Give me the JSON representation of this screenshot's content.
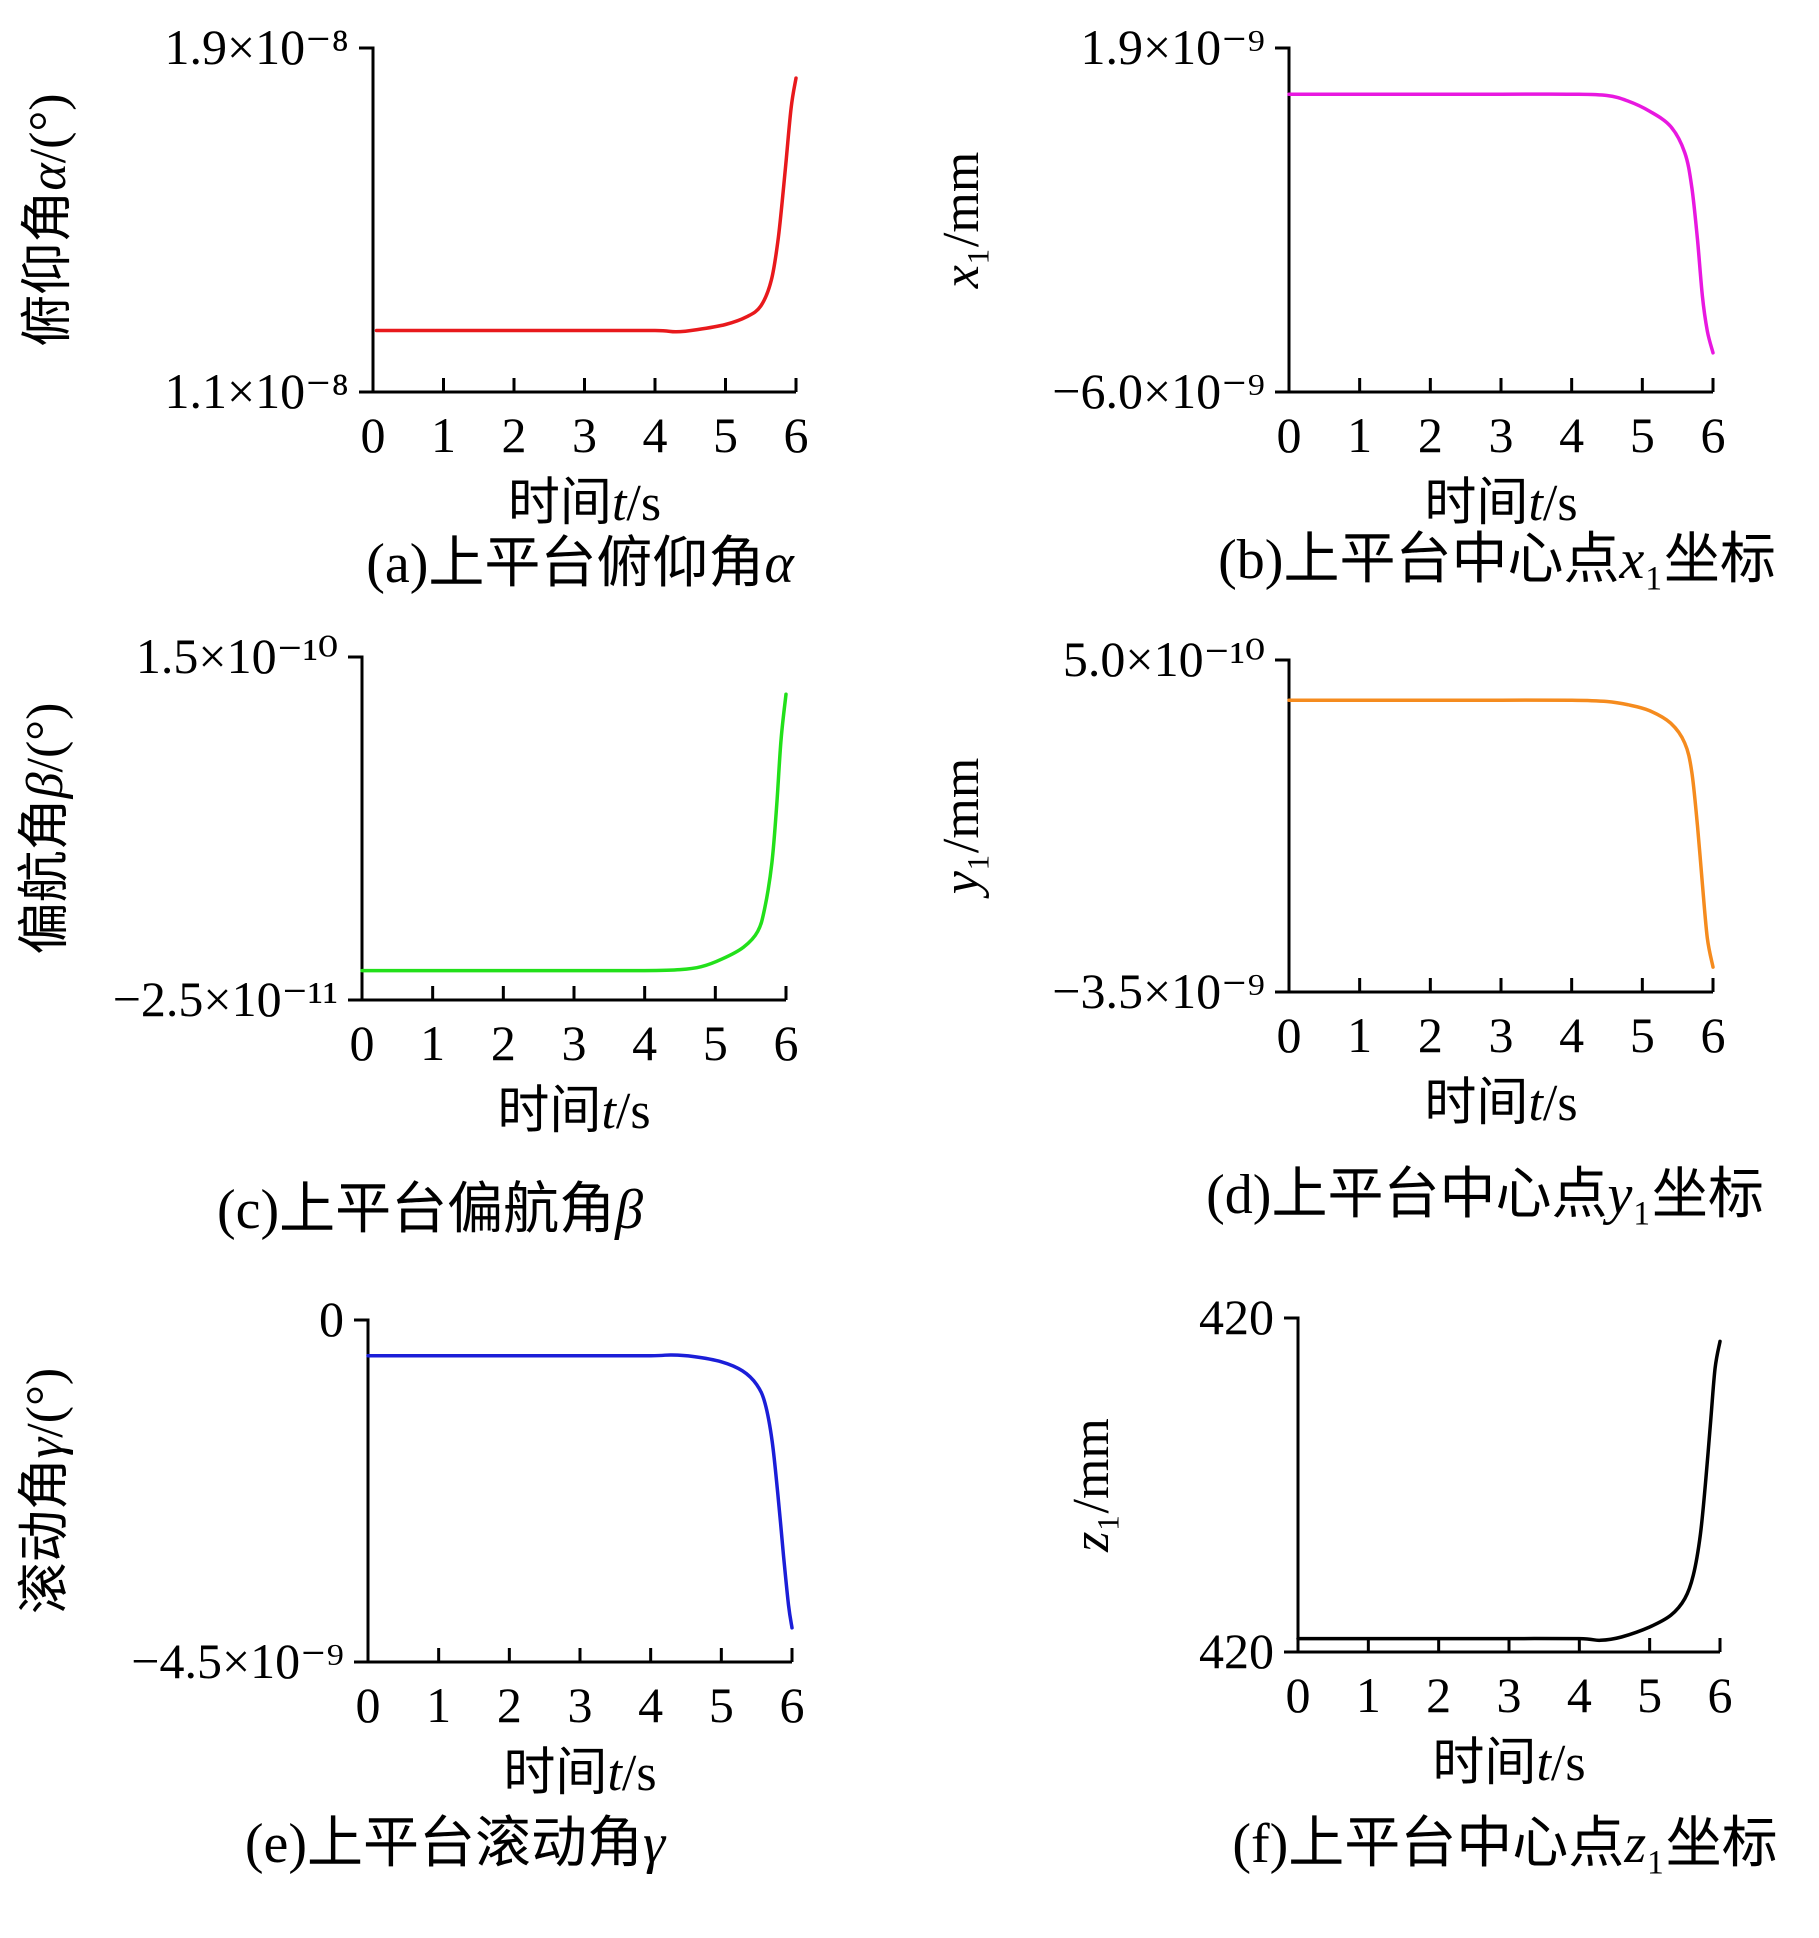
{
  "x_axis_label": "时间t/s",
  "chart_data": [
    {
      "id": "a",
      "type": "line",
      "caption": "(a)上平台俯仰角α",
      "ylabel": "俯仰角α/(°)",
      "y_tick_labels": {
        "top": "1.9×10⁻⁸",
        "bottom": "1.1×10⁻⁸"
      },
      "xlim": [
        0,
        6
      ],
      "ylim": [
        1.1e-08,
        1.9e-08
      ],
      "x_ticks": [
        0,
        1,
        2,
        3,
        4,
        5,
        6
      ],
      "color": "#e8191c",
      "series": [
        {
          "x": [
            0.05,
            1,
            2,
            3,
            4,
            4.3,
            4.6,
            5,
            5.3,
            5.5,
            5.65,
            5.75,
            5.85,
            5.93,
            6.0
          ],
          "y": [
            1.243e-08,
            1.243e-08,
            1.243e-08,
            1.243e-08,
            1.243e-08,
            1.24e-08,
            1.245e-08,
            1.257e-08,
            1.275e-08,
            1.3e-08,
            1.36e-08,
            1.46e-08,
            1.62e-08,
            1.76e-08,
            1.83e-08
          ]
        }
      ]
    },
    {
      "id": "b",
      "type": "line",
      "caption": "(b)上平台中心点x₁坐标",
      "ylabel": "x₁/mm",
      "y_tick_labels": {
        "top": "1.9×10⁻⁹",
        "bottom": "−6.0×10⁻⁹"
      },
      "xlim": [
        0,
        6
      ],
      "ylim": [
        -6e-09,
        1.9e-09
      ],
      "x_ticks": [
        0,
        1,
        2,
        3,
        4,
        5,
        6
      ],
      "color": "#e818e0",
      "series": [
        {
          "x": [
            0,
            1,
            2,
            3,
            4,
            4.5,
            4.8,
            5.1,
            5.4,
            5.6,
            5.7,
            5.78,
            5.85,
            5.92,
            6.0
          ],
          "y": [
            8.4e-10,
            8.4e-10,
            8.4e-10,
            8.4e-10,
            8.4e-10,
            8.1e-10,
            6.8e-10,
            4.5e-10,
            1e-10,
            -5e-10,
            -1.3e-09,
            -2.5e-09,
            -3.8e-09,
            -4.6e-09,
            -5.1e-09
          ]
        }
      ]
    },
    {
      "id": "c",
      "type": "line",
      "caption": "(c)上平台偏航角β",
      "ylabel": "偏航角β/(°)",
      "y_tick_labels": {
        "top": "1.5×10⁻¹⁰",
        "bottom": "−2.5×10⁻¹¹"
      },
      "xlim": [
        0,
        6
      ],
      "ylim": [
        -2.5e-11,
        1.5e-10
      ],
      "x_ticks": [
        0,
        1,
        2,
        3,
        4,
        5,
        6
      ],
      "color": "#22e01a",
      "series": [
        {
          "x": [
            0,
            1,
            2,
            3,
            4,
            4.5,
            4.8,
            5.1,
            5.4,
            5.6,
            5.7,
            5.8,
            5.87,
            5.93,
            6.0
          ],
          "y": [
            -1e-11,
            -1e-11,
            -1e-11,
            -1e-11,
            -1e-11,
            -9.5e-12,
            -8e-12,
            -4e-12,
            2e-12,
            1e-11,
            2.2e-11,
            4.5e-11,
            7.5e-11,
            1.08e-10,
            1.31e-10
          ]
        }
      ]
    },
    {
      "id": "d",
      "type": "line",
      "caption": "(d)上平台中心点y₁坐标",
      "ylabel": "y₁/mm",
      "y_tick_labels": {
        "top": "5.0×10⁻¹⁰",
        "bottom": "−3.5×10⁻⁹"
      },
      "xlim": [
        0,
        6
      ],
      "ylim": [
        -3.5e-09,
        5e-10
      ],
      "x_ticks": [
        0,
        1,
        2,
        3,
        4,
        5,
        6
      ],
      "color": "#f58b1e",
      "series": [
        {
          "x": [
            0,
            1,
            2,
            3,
            4,
            4.5,
            4.8,
            5.1,
            5.4,
            5.6,
            5.7,
            5.78,
            5.85,
            5.92,
            6.0
          ],
          "y": [
            1.6e-11,
            1.6e-11,
            1.6e-11,
            1.6e-11,
            1.6e-11,
            0.0,
            -4e-11,
            -1.1e-10,
            -2.6e-10,
            -5e-10,
            -8.5e-10,
            -1.5e-09,
            -2.2e-09,
            -2.85e-09,
            -3.2e-09
          ]
        }
      ]
    },
    {
      "id": "e",
      "type": "line",
      "caption": "(e)上平台滚动角γ",
      "ylabel": "滚动角γ/(°)",
      "y_tick_labels": {
        "top": "0",
        "bottom": "−4.5×10⁻⁹"
      },
      "xlim": [
        0,
        6
      ],
      "ylim": [
        -4.5e-09,
        0
      ],
      "x_ticks": [
        0,
        1,
        2,
        3,
        4,
        5,
        6
      ],
      "color": "#1b1ed8",
      "series": [
        {
          "x": [
            0,
            1,
            2,
            3,
            4,
            4.3,
            4.6,
            5,
            5.3,
            5.5,
            5.62,
            5.72,
            5.8,
            5.88,
            5.95,
            6.0
          ],
          "y": [
            -4.7e-10,
            -4.7e-10,
            -4.7e-10,
            -4.7e-10,
            -4.7e-10,
            -4.6e-10,
            -4.8e-10,
            -5.5e-10,
            -6.7e-10,
            -8.5e-10,
            -1.1e-09,
            -1.6e-09,
            -2.3e-09,
            -3.1e-09,
            -3.75e-09,
            -4.05e-09
          ]
        }
      ]
    },
    {
      "id": "f",
      "type": "line",
      "caption": "(f)上平台中心点z₁坐标",
      "ylabel": "z₁/mm",
      "y_tick_labels": {
        "top": "420",
        "bottom": "420"
      },
      "xlim": [
        0,
        6
      ],
      "ylim": [
        0,
        1
      ],
      "x_ticks": [
        0,
        1,
        2,
        3,
        4,
        5,
        6
      ],
      "color": "#000000",
      "series": [
        {
          "x": [
            0,
            1,
            2,
            3,
            4,
            4.3,
            4.6,
            5,
            5.3,
            5.5,
            5.62,
            5.72,
            5.8,
            5.87,
            5.93,
            6.0
          ],
          "y": [
            0.04,
            0.04,
            0.04,
            0.04,
            0.04,
            0.035,
            0.045,
            0.075,
            0.11,
            0.16,
            0.23,
            0.35,
            0.52,
            0.7,
            0.85,
            0.93
          ]
        }
      ]
    }
  ]
}
